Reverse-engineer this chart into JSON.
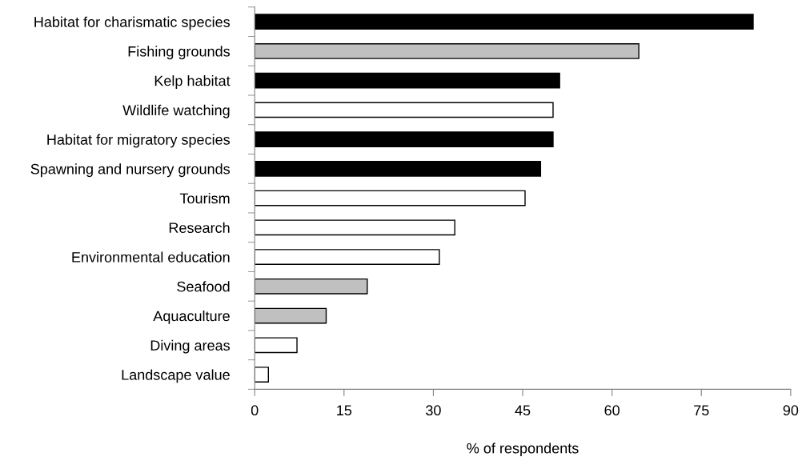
{
  "chart_data": {
    "type": "bar",
    "orientation": "horizontal",
    "xlabel": "% of respondents",
    "categories": [
      "Habitat for charismatic species",
      "Fishing grounds",
      "Kelp habitat",
      "Wildlife watching",
      "Habitat for migratory species",
      "Spawning and nursery grounds",
      "Tourism",
      "Research",
      "Environmental education",
      "Seafood",
      "Aquaculture",
      "Diving areas",
      "Landscape value"
    ],
    "values": [
      83.7,
      64.5,
      51.2,
      50.1,
      50.1,
      48.0,
      45.4,
      33.6,
      31.0,
      18.9,
      12.0,
      7.1,
      2.3
    ],
    "colors": [
      "#000000",
      "#c0c0c0",
      "#000000",
      "#ffffff",
      "#000000",
      "#000000",
      "#ffffff",
      "#ffffff",
      "#ffffff",
      "#c0c0c0",
      "#c0c0c0",
      "#ffffff",
      "#ffffff"
    ],
    "xlim": [
      0,
      90
    ],
    "xticks": [
      0,
      15,
      30,
      45,
      60,
      75,
      90
    ],
    "grid": false,
    "legend": false
  }
}
